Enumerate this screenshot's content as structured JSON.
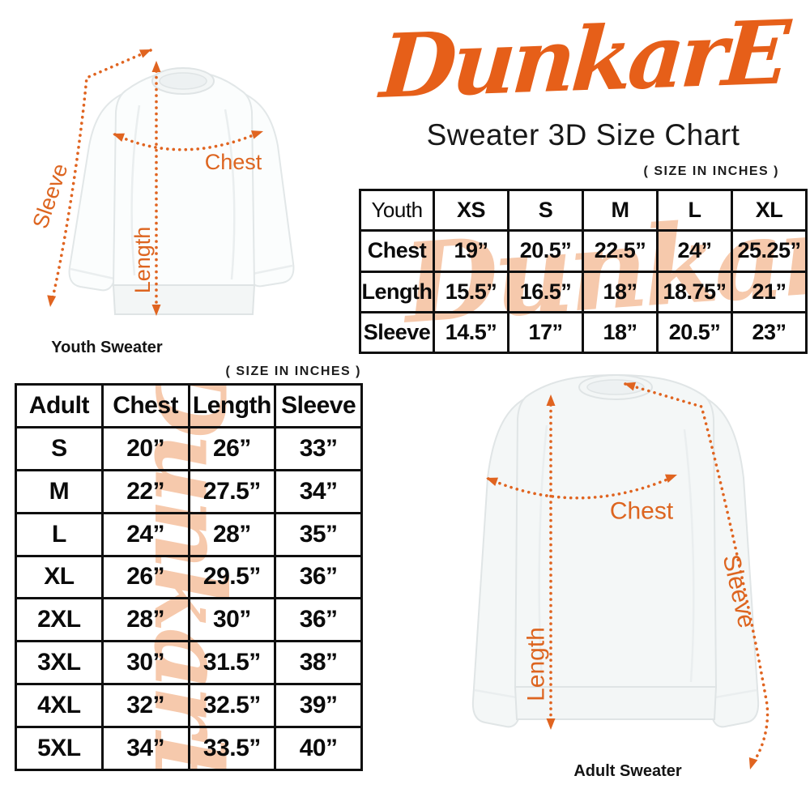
{
  "brand": {
    "logo_text": "DunkarE"
  },
  "header": {
    "title": "Sweater 3D Size Chart"
  },
  "colors": {
    "accent_orange": "#E65F19",
    "annotation_orange": "#E06420",
    "watermark_peach": "#F6C9AC",
    "table_border": "#0F0F0F",
    "text": "#0B0B0B"
  },
  "youth_diagram": {
    "caption": "Youth Sweater",
    "sleeve_label": "Sleeve",
    "length_label": "Length",
    "chest_label": "Chest"
  },
  "adult_diagram": {
    "caption": "Adult Sweater",
    "sleeve_label": "Sleeve",
    "length_label": "Length",
    "chest_label": "Chest"
  },
  "youth_table": {
    "units_note": "( SIZE IN INCHES )",
    "corner_label": "Youth",
    "size_columns": [
      "XS",
      "S",
      "M",
      "L",
      "XL"
    ],
    "rows": [
      {
        "label": "Chest",
        "values": [
          "19”",
          "20.5”",
          "22.5”",
          "24”",
          "25.25”"
        ]
      },
      {
        "label": "Length",
        "values": [
          "15.5”",
          "16.5”",
          "18”",
          "18.75”",
          "21”"
        ]
      },
      {
        "label": "Sleeve",
        "values": [
          "14.5”",
          "17”",
          "18”",
          "20.5”",
          "23”"
        ]
      }
    ]
  },
  "adult_table": {
    "units_note": "( SIZE IN INCHES )",
    "columns": [
      "Adult",
      "Chest",
      "Length",
      "Sleeve"
    ],
    "rows": [
      {
        "label": "S",
        "values": [
          "20”",
          "26”",
          "33”"
        ]
      },
      {
        "label": "M",
        "values": [
          "22”",
          "27.5”",
          "34”"
        ]
      },
      {
        "label": "L",
        "values": [
          "24”",
          "28”",
          "35”"
        ]
      },
      {
        "label": "XL",
        "values": [
          "26”",
          "29.5”",
          "36”"
        ]
      },
      {
        "label": "2XL",
        "values": [
          "28”",
          "30”",
          "36”"
        ]
      },
      {
        "label": "3XL",
        "values": [
          "30”",
          "31.5”",
          "38”"
        ]
      },
      {
        "label": "4XL",
        "values": [
          "32”",
          "32.5”",
          "39”"
        ]
      },
      {
        "label": "5XL",
        "values": [
          "34”",
          "33.5”",
          "40”"
        ]
      }
    ]
  }
}
